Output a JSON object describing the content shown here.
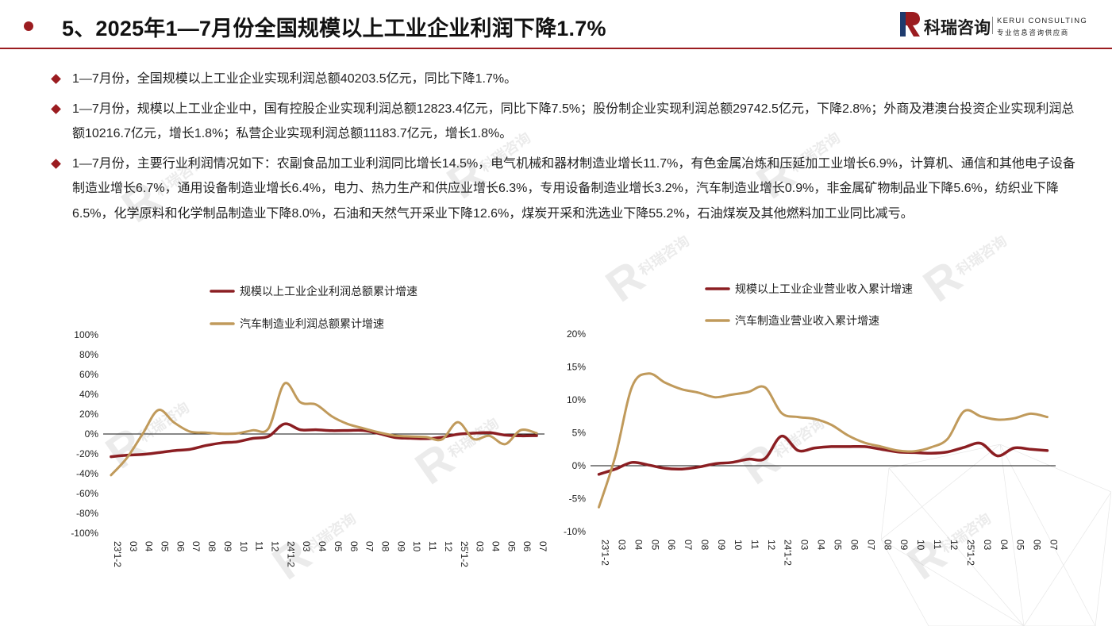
{
  "header": {
    "title": "5、2025年1—7月份全国规模以上工业企业利润下降1.7%",
    "logo_cn": "科瑞咨询",
    "logo_en": "KERUI CONSULTING",
    "logo_tag": "专业信息咨询供应商"
  },
  "bullets": [
    "1—7月份，全国规模以上工业企业实现利润总额40203.5亿元，同比下降1.7%。",
    "1—7月份，规模以上工业企业中，国有控股企业实现利润总额12823.4亿元，同比下降7.5%；股份制企业实现利润总额29742.5亿元，下降2.8%；外商及港澳台投资企业实现利润总额10216.7亿元，增长1.8%；私营企业实现利润总额11183.7亿元，增长1.8%。",
    "1—7月份，主要行业利润情况如下：农副食品加工业利润同比增长14.5%，电气机械和器材制造业增长11.7%，有色金属冶炼和压延加工业增长6.9%，计算机、通信和其他电子设备制造业增长6.7%，通用设备制造业增长6.4%，电力、热力生产和供应业增长6.3%，专用设备制造业增长3.2%，汽车制造业增长0.9%，非金属矿物制品业下降5.6%，纺织业下降6.5%，化学原料和化学制品制造业下降8.0%，石油和天然气开采业下降12.6%，煤炭开采和洗选业下降55.2%，石油煤炭及其他燃料加工业同比减亏。"
  ],
  "colors": {
    "accent": "#9b1c20",
    "series_dark": "#8b1e22",
    "series_gold": "#c09a5b"
  },
  "chart_data": [
    {
      "type": "line",
      "categories": [
        "23'1-2",
        "03",
        "04",
        "05",
        "06",
        "07",
        "08",
        "09",
        "10",
        "11",
        "12",
        "24'1-2",
        "03",
        "04",
        "05",
        "06",
        "07",
        "08",
        "09",
        "10",
        "11",
        "12",
        "25'1-2",
        "03",
        "04",
        "05",
        "06",
        "07"
      ],
      "ylim": [
        -100,
        100
      ],
      "yticks": [
        -100,
        -80,
        -60,
        -40,
        -20,
        0,
        20,
        40,
        60,
        80,
        100
      ],
      "tick_format": "percent",
      "legend_position": "top",
      "series": [
        {
          "name": "规模以上工业企业利润总额累计增速",
          "color": "#8b1e22",
          "values": [
            -22.9,
            -21.4,
            -20.6,
            -18.8,
            -16.8,
            -15.5,
            -11.7,
            -9.0,
            -7.8,
            -4.4,
            -2.3,
            10.2,
            4.3,
            4.3,
            3.4,
            3.5,
            3.6,
            0.5,
            -3.5,
            -4.3,
            -4.7,
            -3.3,
            -0.3,
            0.8,
            1.4,
            -1.1,
            -1.8,
            -1.7
          ]
        },
        {
          "name": "汽车制造业利润总额累计增速",
          "color": "#c09a5b",
          "values": [
            -41.5,
            -24.2,
            0.0,
            24.2,
            11.5,
            2.5,
            1.4,
            0.3,
            0.6,
            3.8,
            5.9,
            50.9,
            32.1,
            29.7,
            17.9,
            10.2,
            5.8,
            1.6,
            -1.6,
            -2.5,
            -3.1,
            -5.4,
            11.9,
            -5.0,
            -1.8,
            -10.2,
            3.9,
            0.9
          ]
        }
      ]
    },
    {
      "type": "line",
      "categories": [
        "23'1-2",
        "03",
        "04",
        "05",
        "06",
        "07",
        "08",
        "09",
        "10",
        "11",
        "12",
        "24'1-2",
        "03",
        "04",
        "05",
        "06",
        "07",
        "08",
        "09",
        "10",
        "11",
        "12",
        "25'1-2",
        "03",
        "04",
        "05",
        "06",
        "07"
      ],
      "ylim": [
        -10,
        20
      ],
      "yticks": [
        -10,
        -5,
        0,
        5,
        10,
        15,
        20
      ],
      "tick_format": "percent",
      "legend_position": "top",
      "series": [
        {
          "name": "规模以上工业企业营业收入累计增速",
          "color": "#8b1e22",
          "values": [
            -1.3,
            -0.5,
            0.5,
            0.1,
            -0.4,
            -0.5,
            -0.2,
            0.3,
            0.5,
            1.0,
            1.1,
            4.5,
            2.3,
            2.7,
            2.9,
            2.9,
            2.9,
            2.5,
            2.1,
            2.0,
            1.9,
            2.1,
            2.8,
            3.4,
            1.5,
            2.7,
            2.5,
            2.3
          ]
        },
        {
          "name": "汽车制造业营业收入累计增速",
          "color": "#c09a5b",
          "values": [
            -6.3,
            1.5,
            12.0,
            14.0,
            12.6,
            11.6,
            11.1,
            10.4,
            10.8,
            11.2,
            11.9,
            8.0,
            7.4,
            7.1,
            6.2,
            4.6,
            3.5,
            2.9,
            2.3,
            2.2,
            2.8,
            4.1,
            8.3,
            7.5,
            7.0,
            7.2,
            7.9,
            7.4
          ]
        }
      ]
    }
  ]
}
